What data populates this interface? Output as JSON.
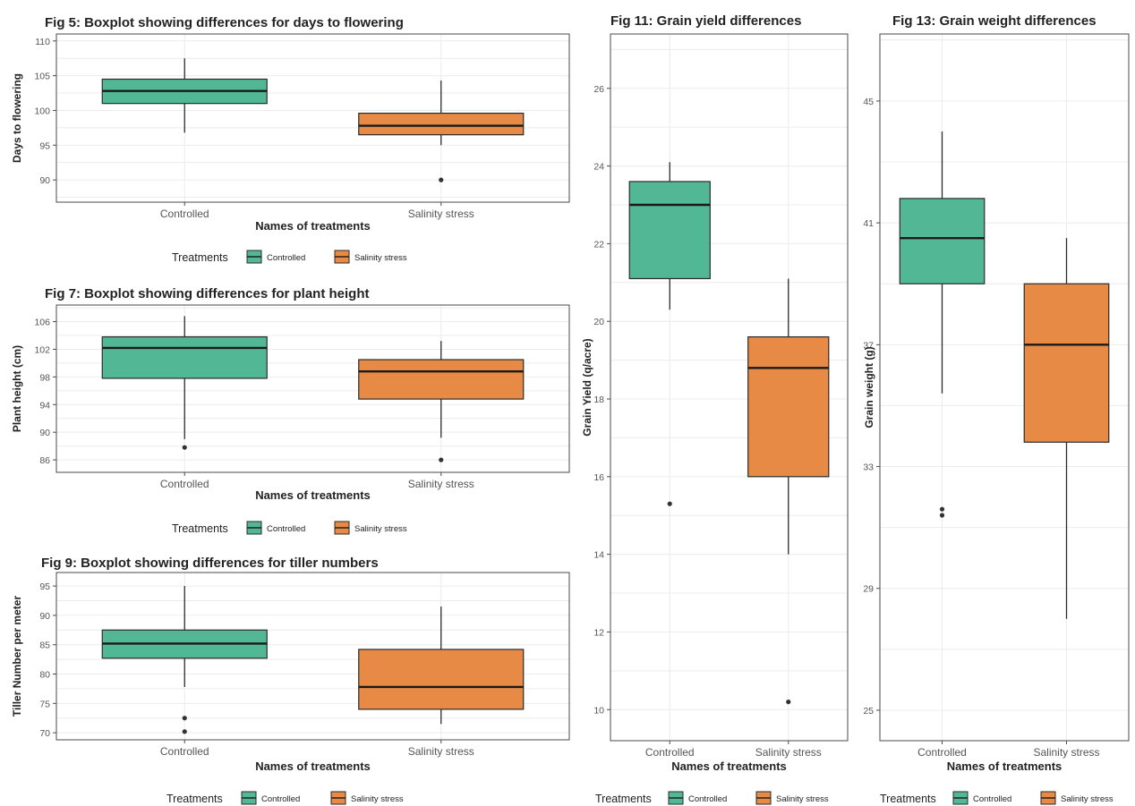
{
  "colors": {
    "controlled": "#52b795",
    "salinity": "#e68a45",
    "box_stroke": "#2b2b2b",
    "median": "#1a1a1a",
    "grid": "#ececec",
    "panel_border": "#4a4a4a",
    "text": "#222222",
    "tick_text": "#555555"
  },
  "chart_data": [
    {
      "id": "fig5",
      "type": "boxplot",
      "title": "Fig 5: Boxplot showing differences for days to flowering",
      "xlabel": "Names of treatments",
      "ylabel": "Days to flowering",
      "categories": [
        "Controlled",
        "Salinity stress"
      ],
      "ylim": [
        86.8,
        111
      ],
      "yticks": [
        90,
        95,
        100,
        105,
        110
      ],
      "series": [
        {
          "category": "Controlled",
          "whisker_low": 96.8,
          "q1": 101,
          "median": 102.8,
          "q3": 104.5,
          "whisker_high": 107.5,
          "outliers": []
        },
        {
          "category": "Salinity stress",
          "whisker_low": 95,
          "q1": 96.5,
          "median": 97.8,
          "q3": 99.6,
          "whisker_high": 104.3,
          "outliers": [
            90
          ]
        }
      ],
      "legend": {
        "title": "Treatments",
        "entries": [
          "Controlled",
          "Salinity stress"
        ],
        "position": "bottom"
      }
    },
    {
      "id": "fig7",
      "type": "boxplot",
      "title": "Fig 7: Boxplot showing differences for plant height",
      "xlabel": "Names of treatments",
      "ylabel": "Plant height (cm)",
      "categories": [
        "Controlled",
        "Salinity stress"
      ],
      "ylim": [
        84.2,
        108.4
      ],
      "yticks": [
        86,
        90,
        94,
        98,
        102,
        106
      ],
      "series": [
        {
          "category": "Controlled",
          "whisker_low": 89,
          "q1": 97.8,
          "median": 102.2,
          "q3": 103.8,
          "whisker_high": 106.8,
          "outliers": [
            87.8
          ]
        },
        {
          "category": "Salinity stress",
          "whisker_low": 89.2,
          "q1": 94.8,
          "median": 98.8,
          "q3": 100.5,
          "whisker_high": 103.2,
          "outliers": [
            86
          ]
        }
      ],
      "legend": {
        "title": "Treatments",
        "entries": [
          "Controlled",
          "Salinity stress"
        ],
        "position": "bottom"
      }
    },
    {
      "id": "fig9",
      "type": "boxplot",
      "title": "Fig 9: Boxplot showing differences for tiller numbers",
      "xlabel": "Names of treatments",
      "ylabel": "Tiller Number per meter",
      "categories": [
        "Controlled",
        "Salinity stress"
      ],
      "ylim": [
        68.8,
        97.3
      ],
      "yticks": [
        70,
        75,
        80,
        85,
        90,
        95
      ],
      "series": [
        {
          "category": "Controlled",
          "whisker_low": 77.8,
          "q1": 82.7,
          "median": 85.2,
          "q3": 87.5,
          "whisker_high": 95,
          "outliers": [
            72.5,
            70.2
          ]
        },
        {
          "category": "Salinity stress",
          "whisker_low": 71.5,
          "q1": 74,
          "median": 77.8,
          "q3": 84.2,
          "whisker_high": 91.5,
          "outliers": []
        }
      ],
      "legend": {
        "title": "Treatments",
        "entries": [
          "Controlled",
          "Salinity stress"
        ],
        "position": "bottom"
      }
    },
    {
      "id": "fig11",
      "type": "boxplot",
      "title": "Fig 11: Grain yield differences",
      "xlabel": "Names of treatments",
      "ylabel": "Grain Yield (q/acre)",
      "categories": [
        "Controlled",
        "Salinity stress"
      ],
      "ylim": [
        9.2,
        27.4
      ],
      "yticks": [
        10,
        12,
        14,
        16,
        18,
        20,
        22,
        24,
        26
      ],
      "series": [
        {
          "category": "Controlled",
          "whisker_low": 20.3,
          "q1": 21.1,
          "median": 23,
          "q3": 23.6,
          "whisker_high": 24.1,
          "outliers": [
            15.3
          ]
        },
        {
          "category": "Salinity stress",
          "whisker_low": 14,
          "q1": 16,
          "median": 18.8,
          "q3": 19.6,
          "whisker_high": 21.1,
          "outliers": [
            10.2
          ]
        }
      ],
      "legend": {
        "title": "Treatments",
        "entries": [
          "Controlled",
          "Salinity stress"
        ],
        "position": "bottom"
      }
    },
    {
      "id": "fig13",
      "type": "boxplot",
      "title": "Fig 13: Grain weight differences",
      "xlabel": "Names of treatments",
      "ylabel": "Grain weight (g)",
      "categories": [
        "Controlled",
        "Salinity stress"
      ],
      "ylim": [
        24,
        47.2
      ],
      "yticks": [
        25,
        29,
        33,
        37,
        41,
        45
      ],
      "series": [
        {
          "category": "Controlled",
          "whisker_low": 35.4,
          "q1": 39,
          "median": 40.5,
          "q3": 41.8,
          "whisker_high": 44,
          "outliers": [
            31.6,
            31.4
          ]
        },
        {
          "category": "Salinity stress",
          "whisker_low": 28,
          "q1": 33.8,
          "median": 37,
          "q3": 39,
          "whisker_high": 40.5,
          "outliers": []
        }
      ],
      "legend": {
        "title": "Treatments",
        "entries": [
          "Controlled",
          "Salinity stress"
        ],
        "position": "bottom"
      }
    }
  ]
}
